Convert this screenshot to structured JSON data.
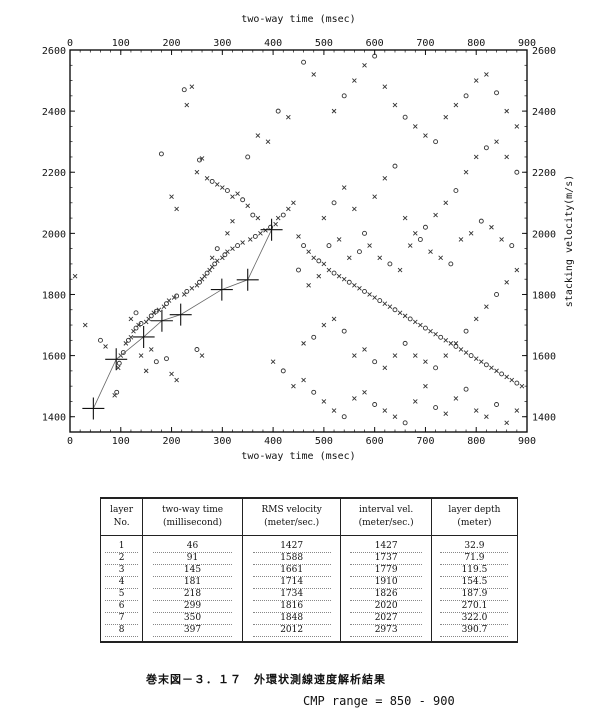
{
  "chart_data": {
    "type": "scatter",
    "title": "",
    "xlabel": "two-way time (msec)",
    "ylabel": "stacking velocity(m/s)",
    "xlim": [
      0,
      900
    ],
    "ylim": [
      1350,
      2600
    ],
    "xticks": [
      0,
      100,
      200,
      300,
      400,
      500,
      600,
      700,
      800,
      900
    ],
    "yticks": [
      1400,
      1600,
      1800,
      2000,
      2200,
      2400,
      2600
    ],
    "legend": "none",
    "grid": false,
    "series": [
      {
        "marker": "plus-with-line",
        "x": [
          46,
          91,
          145,
          181,
          218,
          299,
          350,
          397
        ],
        "y": [
          1427,
          1588,
          1661,
          1714,
          1734,
          1816,
          1848,
          2012
        ]
      }
    ],
    "scatter_points": [
      [
        88,
        1470,
        "x"
      ],
      [
        92,
        1480,
        "o"
      ],
      [
        95,
        1560,
        "x"
      ],
      [
        97,
        1575,
        "o"
      ],
      [
        100,
        1600,
        "x"
      ],
      [
        105,
        1610,
        "o"
      ],
      [
        110,
        1640,
        "x"
      ],
      [
        115,
        1650,
        "o"
      ],
      [
        120,
        1660,
        "x"
      ],
      [
        125,
        1680,
        "x"
      ],
      [
        130,
        1690,
        "o"
      ],
      [
        135,
        1700,
        "x"
      ],
      [
        140,
        1705,
        "o"
      ],
      [
        150,
        1710,
        "x"
      ],
      [
        155,
        1720,
        "x"
      ],
      [
        160,
        1730,
        "o"
      ],
      [
        165,
        1740,
        "x"
      ],
      [
        170,
        1745,
        "o"
      ],
      [
        175,
        1750,
        "x"
      ],
      [
        185,
        1760,
        "x"
      ],
      [
        190,
        1770,
        "o"
      ],
      [
        195,
        1780,
        "x"
      ],
      [
        205,
        1790,
        "x"
      ],
      [
        210,
        1795,
        "o"
      ],
      [
        225,
        1800,
        "x"
      ],
      [
        230,
        1810,
        "o"
      ],
      [
        240,
        1820,
        "x"
      ],
      [
        250,
        1830,
        "x"
      ],
      [
        255,
        1840,
        "o"
      ],
      [
        260,
        1850,
        "x"
      ],
      [
        265,
        1860,
        "x"
      ],
      [
        270,
        1870,
        "o"
      ],
      [
        275,
        1880,
        "x"
      ],
      [
        280,
        1890,
        "x"
      ],
      [
        285,
        1900,
        "o"
      ],
      [
        290,
        1910,
        "x"
      ],
      [
        300,
        1920,
        "x"
      ],
      [
        305,
        1930,
        "o"
      ],
      [
        310,
        1940,
        "x"
      ],
      [
        320,
        1950,
        "x"
      ],
      [
        330,
        1960,
        "o"
      ],
      [
        340,
        1970,
        "x"
      ],
      [
        355,
        1980,
        "x"
      ],
      [
        365,
        1990,
        "o"
      ],
      [
        375,
        2000,
        "x"
      ],
      [
        385,
        2010,
        "x"
      ],
      [
        395,
        2020,
        "o"
      ],
      [
        405,
        2030,
        "x"
      ],
      [
        410,
        2050,
        "x"
      ],
      [
        420,
        2060,
        "o"
      ],
      [
        430,
        2080,
        "x"
      ],
      [
        440,
        2100,
        "x"
      ],
      [
        250,
        2200,
        "x"
      ],
      [
        255,
        2240,
        "o"
      ],
      [
        260,
        2245,
        "x"
      ],
      [
        270,
        2180,
        "x"
      ],
      [
        280,
        2170,
        "o"
      ],
      [
        290,
        2160,
        "x"
      ],
      [
        300,
        2150,
        "x"
      ],
      [
        310,
        2140,
        "o"
      ],
      [
        320,
        2120,
        "x"
      ],
      [
        330,
        2130,
        "x"
      ],
      [
        340,
        2110,
        "o"
      ],
      [
        180,
        2260,
        "o"
      ],
      [
        200,
        2120,
        "x"
      ],
      [
        210,
        2080,
        "x"
      ],
      [
        350,
        2090,
        "x"
      ],
      [
        360,
        2060,
        "o"
      ],
      [
        370,
        2050,
        "x"
      ],
      [
        450,
        1990,
        "x"
      ],
      [
        460,
        1960,
        "o"
      ],
      [
        470,
        1940,
        "x"
      ],
      [
        480,
        1920,
        "x"
      ],
      [
        490,
        1910,
        "o"
      ],
      [
        500,
        1900,
        "x"
      ],
      [
        510,
        1880,
        "x"
      ],
      [
        520,
        1870,
        "o"
      ],
      [
        530,
        1860,
        "x"
      ],
      [
        540,
        1850,
        "x"
      ],
      [
        550,
        1840,
        "o"
      ],
      [
        560,
        1830,
        "x"
      ],
      [
        570,
        1820,
        "x"
      ],
      [
        580,
        1810,
        "o"
      ],
      [
        590,
        1800,
        "x"
      ],
      [
        600,
        1790,
        "x"
      ],
      [
        610,
        1780,
        "o"
      ],
      [
        620,
        1770,
        "x"
      ],
      [
        630,
        1760,
        "x"
      ],
      [
        640,
        1750,
        "o"
      ],
      [
        650,
        1740,
        "x"
      ],
      [
        660,
        1730,
        "x"
      ],
      [
        670,
        1720,
        "o"
      ],
      [
        680,
        1710,
        "x"
      ],
      [
        690,
        1700,
        "x"
      ],
      [
        700,
        1690,
        "o"
      ],
      [
        710,
        1680,
        "x"
      ],
      [
        720,
        1670,
        "x"
      ],
      [
        730,
        1660,
        "o"
      ],
      [
        740,
        1650,
        "x"
      ],
      [
        750,
        1640,
        "x"
      ],
      [
        760,
        1630,
        "o"
      ],
      [
        770,
        1620,
        "x"
      ],
      [
        780,
        1610,
        "x"
      ],
      [
        790,
        1600,
        "o"
      ],
      [
        800,
        1590,
        "x"
      ],
      [
        810,
        1580,
        "x"
      ],
      [
        820,
        1570,
        "o"
      ],
      [
        830,
        1560,
        "x"
      ],
      [
        840,
        1550,
        "x"
      ],
      [
        850,
        1540,
        "o"
      ],
      [
        860,
        1530,
        "x"
      ],
      [
        870,
        1520,
        "x"
      ],
      [
        880,
        1510,
        "o"
      ],
      [
        890,
        1500,
        "x"
      ],
      [
        500,
        2050,
        "x"
      ],
      [
        520,
        2100,
        "o"
      ],
      [
        540,
        2150,
        "x"
      ],
      [
        560,
        2080,
        "x"
      ],
      [
        580,
        2000,
        "o"
      ],
      [
        600,
        2120,
        "x"
      ],
      [
        620,
        2180,
        "x"
      ],
      [
        640,
        2220,
        "o"
      ],
      [
        660,
        2050,
        "x"
      ],
      [
        680,
        2000,
        "x"
      ],
      [
        700,
        2020,
        "o"
      ],
      [
        720,
        2060,
        "x"
      ],
      [
        740,
        2100,
        "x"
      ],
      [
        760,
        2140,
        "o"
      ],
      [
        780,
        2200,
        "x"
      ],
      [
        800,
        2250,
        "x"
      ],
      [
        820,
        2280,
        "o"
      ],
      [
        840,
        2300,
        "x"
      ],
      [
        860,
        2250,
        "x"
      ],
      [
        880,
        2200,
        "o"
      ],
      [
        520,
        2400,
        "x"
      ],
      [
        540,
        2450,
        "o"
      ],
      [
        560,
        2500,
        "x"
      ],
      [
        580,
        2550,
        "x"
      ],
      [
        600,
        2580,
        "o"
      ],
      [
        620,
        2480,
        "x"
      ],
      [
        640,
        2420,
        "x"
      ],
      [
        660,
        2380,
        "o"
      ],
      [
        680,
        2350,
        "x"
      ],
      [
        700,
        2320,
        "x"
      ],
      [
        720,
        2300,
        "o"
      ],
      [
        740,
        2380,
        "x"
      ],
      [
        760,
        2420,
        "x"
      ],
      [
        780,
        2450,
        "o"
      ],
      [
        800,
        2500,
        "x"
      ],
      [
        820,
        2520,
        "x"
      ],
      [
        840,
        2460,
        "o"
      ],
      [
        860,
        2400,
        "x"
      ],
      [
        880,
        2350,
        "x"
      ],
      [
        460,
        2560,
        "o"
      ],
      [
        480,
        2520,
        "x"
      ],
      [
        430,
        2380,
        "x"
      ],
      [
        410,
        2400,
        "o"
      ],
      [
        390,
        2300,
        "x"
      ],
      [
        370,
        2320,
        "x"
      ],
      [
        350,
        2250,
        "o"
      ],
      [
        230,
        2420,
        "x"
      ],
      [
        240,
        2480,
        "x"
      ],
      [
        225,
        2470,
        "o"
      ],
      [
        400,
        1580,
        "x"
      ],
      [
        420,
        1550,
        "o"
      ],
      [
        440,
        1500,
        "x"
      ],
      [
        460,
        1520,
        "x"
      ],
      [
        480,
        1480,
        "o"
      ],
      [
        500,
        1450,
        "x"
      ],
      [
        520,
        1420,
        "x"
      ],
      [
        540,
        1400,
        "o"
      ],
      [
        560,
        1460,
        "x"
      ],
      [
        580,
        1480,
        "x"
      ],
      [
        600,
        1440,
        "o"
      ],
      [
        620,
        1420,
        "x"
      ],
      [
        640,
        1400,
        "x"
      ],
      [
        660,
        1380,
        "o"
      ],
      [
        680,
        1450,
        "x"
      ],
      [
        700,
        1500,
        "x"
      ],
      [
        720,
        1430,
        "o"
      ],
      [
        740,
        1410,
        "x"
      ],
      [
        760,
        1460,
        "x"
      ],
      [
        780,
        1490,
        "o"
      ],
      [
        800,
        1420,
        "x"
      ],
      [
        820,
        1400,
        "x"
      ],
      [
        840,
        1440,
        "o"
      ],
      [
        860,
        1380,
        "x"
      ],
      [
        880,
        1420,
        "x"
      ],
      [
        460,
        1640,
        "x"
      ],
      [
        480,
        1660,
        "o"
      ],
      [
        500,
        1700,
        "x"
      ],
      [
        520,
        1720,
        "x"
      ],
      [
        540,
        1680,
        "o"
      ],
      [
        560,
        1600,
        "x"
      ],
      [
        580,
        1620,
        "x"
      ],
      [
        600,
        1580,
        "o"
      ],
      [
        620,
        1560,
        "x"
      ],
      [
        640,
        1600,
        "x"
      ],
      [
        660,
        1640,
        "o"
      ],
      [
        680,
        1600,
        "x"
      ],
      [
        700,
        1580,
        "x"
      ],
      [
        720,
        1560,
        "o"
      ],
      [
        740,
        1600,
        "x"
      ],
      [
        760,
        1640,
        "x"
      ],
      [
        780,
        1680,
        "o"
      ],
      [
        800,
        1720,
        "x"
      ],
      [
        820,
        1760,
        "x"
      ],
      [
        840,
        1800,
        "o"
      ],
      [
        860,
        1840,
        "x"
      ],
      [
        880,
        1880,
        "x"
      ],
      [
        450,
        1880,
        "o"
      ],
      [
        470,
        1830,
        "x"
      ],
      [
        490,
        1860,
        "x"
      ],
      [
        510,
        1960,
        "o"
      ],
      [
        530,
        1980,
        "x"
      ],
      [
        550,
        1920,
        "x"
      ],
      [
        570,
        1940,
        "o"
      ],
      [
        590,
        1960,
        "x"
      ],
      [
        610,
        1920,
        "x"
      ],
      [
        630,
        1900,
        "o"
      ],
      [
        650,
        1880,
        "x"
      ],
      [
        670,
        1960,
        "x"
      ],
      [
        690,
        1980,
        "o"
      ],
      [
        710,
        1940,
        "x"
      ],
      [
        730,
        1920,
        "x"
      ],
      [
        750,
        1900,
        "o"
      ],
      [
        770,
        1980,
        "x"
      ],
      [
        790,
        2000,
        "x"
      ],
      [
        810,
        2040,
        "o"
      ],
      [
        830,
        2020,
        "x"
      ],
      [
        850,
        1980,
        "x"
      ],
      [
        870,
        1960,
        "o"
      ],
      [
        30,
        1700,
        "x"
      ],
      [
        10,
        1860,
        "x"
      ],
      [
        60,
        1650,
        "o"
      ],
      [
        70,
        1630,
        "x"
      ],
      [
        120,
        1720,
        "x"
      ],
      [
        130,
        1740,
        "o"
      ],
      [
        140,
        1600,
        "x"
      ],
      [
        160,
        1620,
        "x"
      ],
      [
        170,
        1580,
        "o"
      ],
      [
        200,
        1540,
        "x"
      ],
      [
        210,
        1520,
        "x"
      ],
      [
        250,
        1620,
        "o"
      ],
      [
        260,
        1600,
        "x"
      ],
      [
        280,
        1920,
        "x"
      ],
      [
        290,
        1950,
        "o"
      ],
      [
        310,
        2000,
        "x"
      ],
      [
        320,
        2040,
        "x"
      ],
      [
        150,
        1550,
        "x"
      ],
      [
        190,
        1590,
        "o"
      ]
    ]
  },
  "table": {
    "headers": [
      [
        "layer",
        "No."
      ],
      [
        "two-way time",
        "(millisecond)"
      ],
      [
        "RMS velocity",
        "(meter/sec.)"
      ],
      [
        "interval vel.",
        "(meter/sec.)"
      ],
      [
        "layer depth",
        "(meter)"
      ]
    ],
    "rows": [
      [
        "1",
        "46",
        "1427",
        "1427",
        "32.9"
      ],
      [
        "2",
        "91",
        "1588",
        "1737",
        "71.9"
      ],
      [
        "3",
        "145",
        "1661",
        "1779",
        "119.5"
      ],
      [
        "4",
        "181",
        "1714",
        "1910",
        "154.5"
      ],
      [
        "5",
        "218",
        "1734",
        "1826",
        "187.9"
      ],
      [
        "6",
        "299",
        "1816",
        "2020",
        "270.1"
      ],
      [
        "7",
        "350",
        "1848",
        "2027",
        "322.0"
      ],
      [
        "8",
        "397",
        "2012",
        "2973",
        "390.7"
      ]
    ]
  },
  "caption": "巻末図－３．１７　外環状測線速度解析結果",
  "cmp_range": "CMP range = 850 - 900"
}
